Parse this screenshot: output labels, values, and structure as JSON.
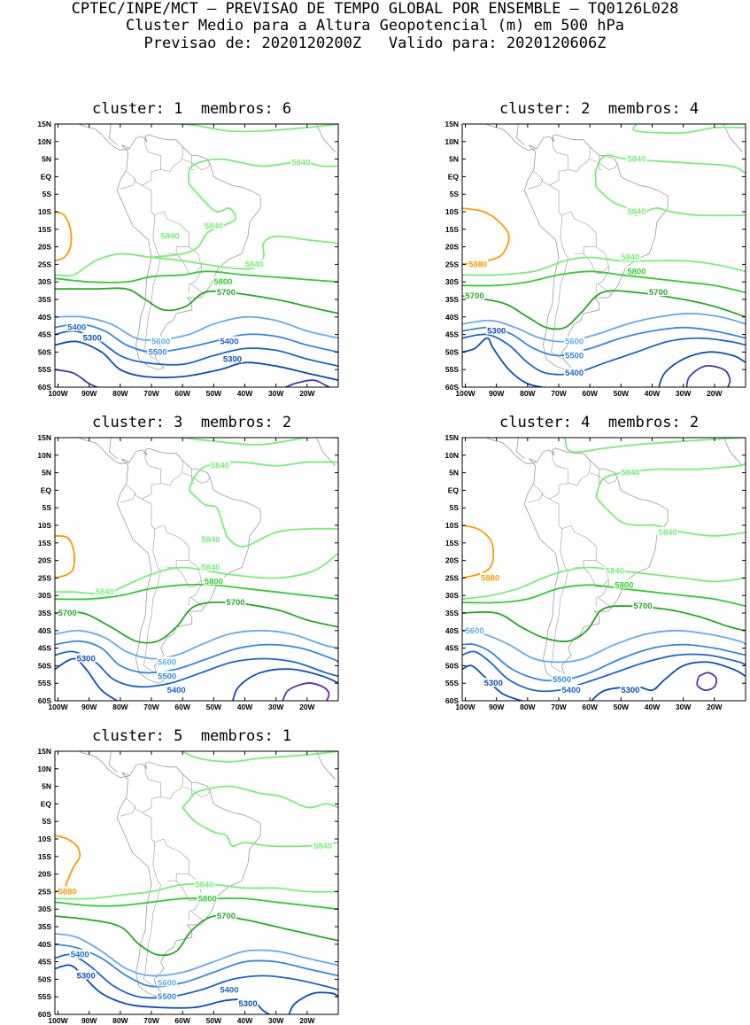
{
  "header": {
    "line1": "CPTEC/INPE/MCT – PREVISAO DE TEMPO GLOBAL POR ENSEMBLE – TQ0126L028",
    "line2": "Cluster Medio para a Altura Geopotencial (m) em 500 hPa",
    "line3": "Previsao de: 2020120200Z   Valido para: 2020120606Z"
  },
  "axes": {
    "lat_labels": [
      "15N",
      "10N",
      "5N",
      "EQ",
      "5S",
      "10S",
      "15S",
      "20S",
      "25S",
      "30S",
      "35S",
      "40S",
      "45S",
      "50S",
      "55S",
      "60S"
    ],
    "lon_labels": [
      "100W",
      "90W",
      "80W",
      "70W",
      "60W",
      "50W",
      "40W",
      "30W",
      "20W"
    ],
    "lat_range": [
      -60,
      15
    ],
    "lon_range": [
      -101,
      -10
    ]
  },
  "colors": {
    "c5880": "#ff9900",
    "c5840": "#77ee77",
    "c5800": "#33cc33",
    "c5700": "#22aa22",
    "c5600": "#66aaee",
    "c5500": "#3388dd",
    "c5400": "#1a66cc",
    "c5300": "#0b4db8",
    "c5200": "#5533aa",
    "coast": "#999999"
  },
  "panels": [
    {
      "title": "cluster: 1  membros: 6",
      "labels": [
        {
          "text": "5840",
          "lon": -25,
          "lat": 4,
          "c": "c5840"
        },
        {
          "text": "5840",
          "lon": -67,
          "lat": -17,
          "c": "c5840"
        },
        {
          "text": "5840",
          "lon": -53,
          "lat": -14,
          "c": "c5840"
        },
        {
          "text": "5840",
          "lon": -40,
          "lat": -25,
          "c": "c5840"
        },
        {
          "text": "5800",
          "lon": -50,
          "lat": -30,
          "c": "c5800"
        },
        {
          "text": "5700",
          "lon": -49,
          "lat": -33,
          "c": "c5700"
        },
        {
          "text": "5600",
          "lon": -70,
          "lat": -47,
          "c": "c5600"
        },
        {
          "text": "5500",
          "lon": -71,
          "lat": -50,
          "c": "c5500"
        },
        {
          "text": "5400",
          "lon": -97,
          "lat": -43,
          "c": "c5400"
        },
        {
          "text": "5400",
          "lon": -48,
          "lat": -47,
          "c": "c5400"
        },
        {
          "text": "5300",
          "lon": -92,
          "lat": -46,
          "c": "c5300"
        },
        {
          "text": "5300",
          "lon": -47,
          "lat": -52,
          "c": "c5300"
        }
      ]
    },
    {
      "title": "cluster: 2  membros: 4",
      "labels": [
        {
          "text": "5840",
          "lon": -48,
          "lat": 5,
          "c": "c5840"
        },
        {
          "text": "5840",
          "lon": -48,
          "lat": -10,
          "c": "c5840"
        },
        {
          "text": "5880",
          "lon": -99,
          "lat": -25,
          "c": "c5880"
        },
        {
          "text": "5840",
          "lon": -50,
          "lat": -23,
          "c": "c5840"
        },
        {
          "text": "5800",
          "lon": -48,
          "lat": -27,
          "c": "c5800"
        },
        {
          "text": "5700",
          "lon": -100,
          "lat": -34,
          "c": "c5700"
        },
        {
          "text": "5700",
          "lon": -41,
          "lat": -33,
          "c": "c5700"
        },
        {
          "text": "5600",
          "lon": -68,
          "lat": -47,
          "c": "c5600"
        },
        {
          "text": "5500",
          "lon": -68,
          "lat": -51,
          "c": "c5500"
        },
        {
          "text": "5400",
          "lon": -68,
          "lat": -56,
          "c": "c5400"
        },
        {
          "text": "5300",
          "lon": -93,
          "lat": -44,
          "c": "c5300"
        }
      ]
    },
    {
      "title": "cluster: 3  membros: 2",
      "labels": [
        {
          "text": "5840",
          "lon": -51,
          "lat": 7,
          "c": "c5840"
        },
        {
          "text": "5840",
          "lon": -54,
          "lat": -14,
          "c": "c5840"
        },
        {
          "text": "5840",
          "lon": -54,
          "lat": -22,
          "c": "c5840"
        },
        {
          "text": "5840",
          "lon": -88,
          "lat": -29,
          "c": "c5840"
        },
        {
          "text": "5800",
          "lon": -53,
          "lat": -26,
          "c": "c5800"
        },
        {
          "text": "5700",
          "lon": -100,
          "lat": -35,
          "c": "c5700"
        },
        {
          "text": "5700",
          "lon": -46,
          "lat": -32,
          "c": "c5700"
        },
        {
          "text": "5600",
          "lon": -68,
          "lat": -49,
          "c": "c5600"
        },
        {
          "text": "5500",
          "lon": -68,
          "lat": -53,
          "c": "c5500"
        },
        {
          "text": "5400",
          "lon": -65,
          "lat": -57,
          "c": "c5400"
        },
        {
          "text": "5300",
          "lon": -94,
          "lat": -48,
          "c": "c5300"
        }
      ]
    },
    {
      "title": "cluster: 4  membros: 2",
      "labels": [
        {
          "text": "5840",
          "lon": -50,
          "lat": 5,
          "c": "c5840"
        },
        {
          "text": "5840",
          "lon": -38,
          "lat": -12,
          "c": "c5840"
        },
        {
          "text": "5880",
          "lon": -95,
          "lat": -25,
          "c": "c5880"
        },
        {
          "text": "5840",
          "lon": -55,
          "lat": -23,
          "c": "c5840"
        },
        {
          "text": "5800",
          "lon": -52,
          "lat": -27,
          "c": "c5800"
        },
        {
          "text": "5700",
          "lon": -46,
          "lat": -33,
          "c": "c5700"
        },
        {
          "text": "5600",
          "lon": -100,
          "lat": -40,
          "c": "c5600"
        },
        {
          "text": "5500",
          "lon": -72,
          "lat": -54,
          "c": "c5500"
        },
        {
          "text": "5400",
          "lon": -69,
          "lat": -57,
          "c": "c5400"
        },
        {
          "text": "5300",
          "lon": -94,
          "lat": -55,
          "c": "c5300"
        },
        {
          "text": "5300",
          "lon": -50,
          "lat": -57,
          "c": "c5300"
        }
      ]
    },
    {
      "title": "cluster: 5  membros: 1",
      "labels": [
        {
          "text": "5840",
          "lon": -18,
          "lat": -12,
          "c": "c5840"
        },
        {
          "text": "5880",
          "lon": -100,
          "lat": -25,
          "c": "c5880"
        },
        {
          "text": "5840",
          "lon": -56,
          "lat": -23,
          "c": "c5840"
        },
        {
          "text": "5800",
          "lon": -55,
          "lat": -27,
          "c": "c5800"
        },
        {
          "text": "5700",
          "lon": -49,
          "lat": -32,
          "c": "c5700"
        },
        {
          "text": "5600",
          "lon": -68,
          "lat": -51,
          "c": "c5600"
        },
        {
          "text": "5500",
          "lon": -68,
          "lat": -55,
          "c": "c5500"
        },
        {
          "text": "5400",
          "lon": -96,
          "lat": -43,
          "c": "c5400"
        },
        {
          "text": "5400",
          "lon": -48,
          "lat": -53,
          "c": "c5400"
        },
        {
          "text": "5300",
          "lon": -94,
          "lat": -49,
          "c": "c5300"
        },
        {
          "text": "5300",
          "lon": -42,
          "lat": -57,
          "c": "c5300"
        }
      ]
    }
  ]
}
